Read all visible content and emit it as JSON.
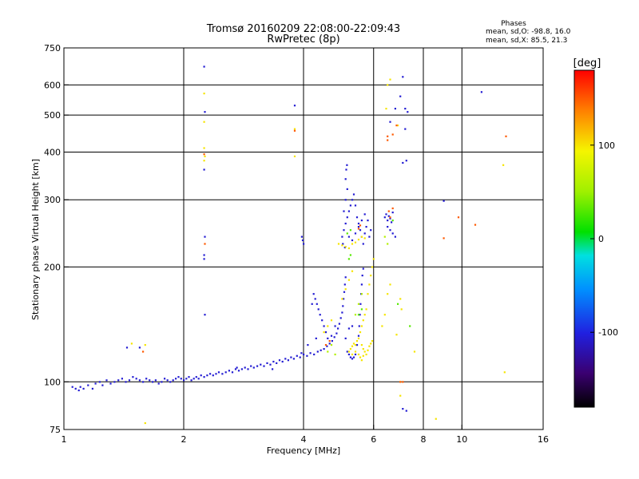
{
  "chart_data": {
    "type": "scatter",
    "title": "Tromsø 20160209 22:08:00-22:09:43",
    "subtitle": "RwPretec (8p)",
    "xlabel": "Frequency [MHz]",
    "ylabel": "Stationary phase Virtual Height [km]",
    "x_scale": "log",
    "y_scale": "log",
    "xlim": [
      1,
      16
    ],
    "ylim": [
      75,
      750
    ],
    "x_ticks": [
      1,
      2,
      4,
      6,
      8,
      10,
      16
    ],
    "y_ticks": [
      75,
      100,
      200,
      300,
      400,
      500,
      600,
      750
    ],
    "x_gridlines": [
      2,
      4,
      6,
      8,
      10
    ],
    "y_gridlines": [
      100,
      200,
      300,
      400,
      500,
      600
    ],
    "phase_info": {
      "title": "Phases",
      "line_o": "mean, sd,O: -98.8, 16.0",
      "line_x": "mean, sd,X:  85.5, 21.3"
    },
    "colorbar": {
      "label": "[deg]",
      "range": [
        -180,
        180
      ],
      "ticks": [
        "100",
        "0",
        "-100"
      ],
      "tick_values": [
        100,
        0,
        -100
      ]
    },
    "series": [
      {
        "color_value": -105,
        "points": [
          [
            1.05,
            97
          ],
          [
            1.07,
            96
          ],
          [
            1.09,
            95
          ],
          [
            1.1,
            97
          ],
          [
            1.12,
            96
          ],
          [
            1.15,
            98
          ],
          [
            1.18,
            96
          ],
          [
            1.2,
            99
          ],
          [
            1.23,
            100
          ],
          [
            1.25,
            98
          ],
          [
            1.28,
            101
          ],
          [
            1.31,
            99
          ],
          [
            1.34,
            100
          ],
          [
            1.37,
            101
          ],
          [
            1.4,
            102
          ],
          [
            1.43,
            100
          ],
          [
            1.46,
            101
          ],
          [
            1.49,
            103
          ],
          [
            1.52,
            102
          ],
          [
            1.55,
            101
          ],
          [
            1.58,
            100
          ],
          [
            1.61,
            102
          ],
          [
            1.64,
            101
          ],
          [
            1.67,
            100
          ],
          [
            1.7,
            101
          ],
          [
            1.73,
            99
          ],
          [
            1.76,
            100
          ],
          [
            1.79,
            102
          ],
          [
            1.82,
            101
          ],
          [
            1.85,
            100
          ],
          [
            1.88,
            101
          ],
          [
            1.91,
            102
          ],
          [
            1.94,
            103
          ],
          [
            1.97,
            102
          ],
          [
            2.0,
            101
          ],
          [
            2.03,
            102
          ],
          [
            2.06,
            103
          ],
          [
            2.09,
            101
          ],
          [
            2.12,
            102
          ],
          [
            2.15,
            103
          ],
          [
            2.18,
            102
          ],
          [
            2.21,
            104
          ],
          [
            2.25,
            103
          ],
          [
            2.29,
            104
          ],
          [
            2.33,
            105
          ],
          [
            2.37,
            104
          ],
          [
            2.41,
            105
          ],
          [
            2.45,
            106
          ],
          [
            2.5,
            105
          ],
          [
            2.55,
            106
          ],
          [
            2.6,
            107
          ],
          [
            2.65,
            106
          ],
          [
            2.7,
            108
          ],
          [
            2.75,
            107
          ],
          [
            2.8,
            108
          ],
          [
            2.85,
            109
          ],
          [
            2.9,
            108
          ],
          [
            2.95,
            110
          ],
          [
            3.0,
            109
          ],
          [
            3.06,
            110
          ],
          [
            3.12,
            111
          ],
          [
            3.18,
            110
          ],
          [
            3.24,
            112
          ],
          [
            3.3,
            111
          ],
          [
            3.36,
            113
          ],
          [
            3.42,
            112
          ],
          [
            3.48,
            114
          ],
          [
            3.54,
            113
          ],
          [
            3.6,
            115
          ],
          [
            3.66,
            114
          ],
          [
            3.72,
            116
          ],
          [
            3.78,
            115
          ],
          [
            3.85,
            117
          ],
          [
            3.92,
            116
          ],
          [
            4.0,
            118
          ],
          [
            4.08,
            117
          ],
          [
            4.16,
            119
          ],
          [
            4.25,
            118
          ],
          [
            4.34,
            120
          ],
          [
            4.42,
            121
          ],
          [
            4.5,
            122
          ],
          [
            4.58,
            124
          ],
          [
            4.65,
            126
          ],
          [
            4.72,
            128
          ],
          [
            4.78,
            131
          ],
          [
            4.84,
            134
          ],
          [
            4.88,
            138
          ],
          [
            4.92,
            142
          ],
          [
            4.96,
            147
          ],
          [
            5.0,
            152
          ],
          [
            5.02,
            158
          ],
          [
            5.04,
            165
          ],
          [
            5.06,
            172
          ],
          [
            5.08,
            180
          ],
          [
            5.1,
            188
          ],
          [
            4.6,
            130
          ],
          [
            4.55,
            135
          ],
          [
            4.5,
            140
          ],
          [
            4.45,
            145
          ],
          [
            4.4,
            150
          ],
          [
            4.36,
            155
          ],
          [
            4.32,
            160
          ],
          [
            4.28,
            165
          ],
          [
            4.24,
            170
          ],
          [
            4.2,
            160
          ],
          [
            5.15,
            120
          ],
          [
            5.2,
            118
          ],
          [
            5.25,
            116
          ],
          [
            5.3,
            115
          ],
          [
            5.35,
            116
          ],
          [
            5.4,
            118
          ],
          [
            5.45,
            125
          ],
          [
            5.5,
            132
          ],
          [
            5.52,
            140
          ],
          [
            5.54,
            150
          ],
          [
            5.56,
            160
          ],
          [
            5.58,
            170
          ],
          [
            5.6,
            180
          ],
          [
            5.62,
            190
          ],
          [
            5.65,
            198
          ],
          [
            2.72,
            109
          ],
          [
            3.34,
            108
          ],
          [
            3.95,
            119
          ],
          [
            4.1,
            125
          ],
          [
            4.3,
            130
          ],
          [
            4.7,
            132
          ],
          [
            4.8,
            140
          ],
          [
            5.1,
            130
          ],
          [
            5.2,
            138
          ],
          [
            5.3,
            140
          ],
          [
            1.55,
            123
          ],
          [
            1.44,
            123
          ],
          [
            3.96,
            240
          ],
          [
            3.98,
            235
          ],
          [
            4.0,
            230
          ],
          [
            5.0,
            240
          ],
          [
            5.05,
            250
          ],
          [
            5.1,
            260
          ],
          [
            5.15,
            270
          ],
          [
            5.2,
            280
          ],
          [
            5.25,
            290
          ],
          [
            5.3,
            300
          ],
          [
            5.35,
            310
          ],
          [
            5.4,
            290
          ],
          [
            5.45,
            270
          ],
          [
            5.5,
            260
          ],
          [
            5.55,
            250
          ],
          [
            5.6,
            240
          ],
          [
            5.65,
            230
          ],
          [
            5.7,
            245
          ],
          [
            5.75,
            255
          ],
          [
            5.8,
            265
          ],
          [
            5.85,
            240
          ],
          [
            5.9,
            250
          ],
          [
            5.2,
            240
          ],
          [
            5.3,
            235
          ],
          [
            5.4,
            245
          ],
          [
            5.5,
            255
          ],
          [
            5.6,
            265
          ],
          [
            5.7,
            275
          ],
          [
            5.05,
            280
          ],
          [
            5.1,
            300
          ],
          [
            5.15,
            320
          ],
          [
            5.1,
            340
          ],
          [
            5.12,
            360
          ],
          [
            5.14,
            370
          ],
          [
            6.4,
            270
          ],
          [
            6.45,
            275
          ],
          [
            6.5,
            265
          ],
          [
            6.55,
            272
          ],
          [
            6.6,
            268
          ],
          [
            6.65,
            262
          ],
          [
            6.7,
            278
          ],
          [
            6.5,
            255
          ],
          [
            6.6,
            250
          ],
          [
            6.7,
            245
          ],
          [
            6.8,
            240
          ],
          [
            6.6,
            480
          ],
          [
            6.8,
            520
          ],
          [
            7.0,
            560
          ],
          [
            7.1,
            630
          ],
          [
            7.2,
            520
          ],
          [
            7.3,
            510
          ],
          [
            7.2,
            460
          ],
          [
            7.25,
            380
          ],
          [
            7.1,
            375
          ],
          [
            2.25,
            670
          ],
          [
            2.26,
            510
          ],
          [
            2.25,
            360
          ],
          [
            2.26,
            240
          ],
          [
            2.25,
            215
          ],
          [
            2.25,
            210
          ],
          [
            2.26,
            150
          ],
          [
            3.8,
            530
          ],
          [
            11.2,
            575
          ],
          [
            9.0,
            298
          ],
          [
            7.1,
            85
          ],
          [
            7.25,
            84
          ],
          [
            5.02,
            230
          ],
          [
            5.08,
            225
          ]
        ]
      },
      {
        "color_value": 100,
        "points": [
          [
            5.2,
            120
          ],
          [
            5.25,
            122
          ],
          [
            5.3,
            124
          ],
          [
            5.35,
            126
          ],
          [
            5.4,
            125
          ],
          [
            5.45,
            128
          ],
          [
            5.5,
            130
          ],
          [
            5.55,
            135
          ],
          [
            5.6,
            140
          ],
          [
            5.65,
            145
          ],
          [
            5.7,
            150
          ],
          [
            5.75,
            155
          ],
          [
            5.6,
            125
          ],
          [
            5.65,
            122
          ],
          [
            5.7,
            120
          ],
          [
            5.75,
            118
          ],
          [
            5.8,
            121
          ],
          [
            5.85,
            124
          ],
          [
            5.9,
            126
          ],
          [
            5.95,
            128
          ],
          [
            5.5,
            118
          ],
          [
            5.55,
            116
          ],
          [
            5.6,
            114
          ],
          [
            5.65,
            117
          ],
          [
            5.4,
            120
          ],
          [
            5.3,
            118
          ],
          [
            5.8,
            170
          ],
          [
            5.85,
            180
          ],
          [
            5.9,
            190
          ],
          [
            5.95,
            200
          ],
          [
            6.0,
            210
          ],
          [
            4.9,
            230
          ],
          [
            5.0,
            228
          ],
          [
            5.1,
            226
          ],
          [
            5.2,
            224
          ],
          [
            5.3,
            230
          ],
          [
            5.4,
            232
          ],
          [
            5.5,
            236
          ],
          [
            5.6,
            240
          ],
          [
            5.7,
            238
          ],
          [
            6.3,
            140
          ],
          [
            6.4,
            150
          ],
          [
            6.5,
            170
          ],
          [
            6.6,
            180
          ],
          [
            7.0,
            165
          ],
          [
            7.05,
            155
          ],
          [
            2.25,
            570
          ],
          [
            2.25,
            480
          ],
          [
            2.25,
            410
          ],
          [
            2.26,
            390
          ],
          [
            2.25,
            380
          ],
          [
            1.6,
            125
          ],
          [
            1.48,
            126
          ],
          [
            1.6,
            78
          ],
          [
            3.8,
            390
          ],
          [
            3.8,
            460
          ],
          [
            6.45,
            520
          ],
          [
            6.5,
            600
          ],
          [
            6.9,
            470
          ],
          [
            5.0,
            165
          ],
          [
            5.1,
            175
          ],
          [
            5.2,
            185
          ],
          [
            5.3,
            195
          ],
          [
            4.5,
            135
          ],
          [
            4.6,
            140
          ],
          [
            4.7,
            145
          ],
          [
            6.6,
            620
          ],
          [
            7.0,
            100
          ],
          [
            7.0,
            92
          ],
          [
            12.8,
            106
          ],
          [
            12.7,
            370
          ],
          [
            7.6,
            120
          ],
          [
            8.6,
            80
          ],
          [
            6.85,
            133
          ]
        ]
      },
      {
        "color_value": 150,
        "points": [
          [
            2.26,
            230
          ],
          [
            2.25,
            395
          ],
          [
            3.8,
            455
          ],
          [
            6.5,
            440
          ],
          [
            6.7,
            445
          ],
          [
            7.0,
            100
          ],
          [
            7.1,
            100
          ],
          [
            9.0,
            238
          ],
          [
            9.8,
            270
          ],
          [
            10.8,
            258
          ],
          [
            12.9,
            440
          ],
          [
            6.5,
            430
          ],
          [
            6.55,
            280
          ],
          [
            6.6,
            270
          ],
          [
            6.7,
            285
          ],
          [
            4.55,
            125
          ],
          [
            4.65,
            128
          ],
          [
            5.5,
            252
          ],
          [
            5.55,
            257
          ],
          [
            1.58,
            120
          ],
          [
            6.85,
            470
          ]
        ]
      },
      {
        "color_value": 30,
        "points": [
          [
            5.2,
            210
          ],
          [
            5.25,
            215
          ],
          [
            5.5,
            150
          ],
          [
            5.6,
            155
          ],
          [
            6.9,
            160
          ],
          [
            7.4,
            140
          ],
          [
            5.15,
            245
          ],
          [
            5.25,
            250
          ],
          [
            6.7,
            265
          ]
        ]
      },
      {
        "color_value": 60,
        "points": [
          [
            4.6,
            120
          ],
          [
            4.7,
            125
          ],
          [
            4.8,
            118
          ],
          [
            5.4,
            150
          ],
          [
            5.5,
            160
          ],
          [
            5.6,
            170
          ],
          [
            6.4,
            240
          ],
          [
            6.5,
            230
          ]
        ]
      }
    ]
  }
}
